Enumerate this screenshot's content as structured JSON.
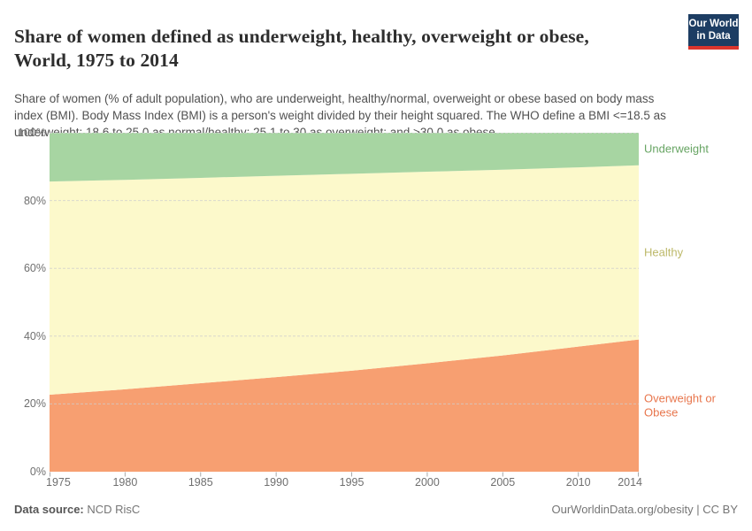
{
  "header": {
    "title_line1": "Share of women defined as underweight, healthy, overweight or obese,",
    "title_line2": "World, 1975 to 2014",
    "subtitle_line1": "Share of women (% of adult population), who are underweight, healthy/normal, overweight or obese based on body mass",
    "subtitle_line2": "index (BMI). Body Mass Index (BMI) is a person's weight divided by their height squared. The WHO define a BMI <=18.5 as",
    "subtitle_line3": "underweight; 18.6 to 25.0 as normal/healthy; 25.1 to 30 as overweight; and >30.0 as obese."
  },
  "logo": {
    "line1": "Our World",
    "line2": "in Data",
    "bg_color": "#1d3d63",
    "accent_color": "#dc352d"
  },
  "chart_data": {
    "type": "area",
    "stacked": true,
    "title": "Share of women defined as underweight, healthy, overweight or obese, World, 1975 to 2014",
    "x": [
      1975,
      1980,
      1985,
      1990,
      1995,
      2000,
      2005,
      2010,
      2014
    ],
    "xlim": [
      1975,
      2014
    ],
    "ylim": [
      0,
      100
    ],
    "xticks": [
      1975,
      1980,
      1985,
      1990,
      1995,
      2000,
      2005,
      2010,
      2014
    ],
    "yticks": [
      0,
      20,
      40,
      60,
      80,
      100
    ],
    "ytick_suffix": "%",
    "grid": "dashed-horizontal",
    "legend_position": "right-inline-labels",
    "series": [
      {
        "name": "Overweight or Obese",
        "area_color": "#f79f71",
        "label_color": "#e8764d",
        "values": [
          22.7,
          24.3,
          26.1,
          27.9,
          29.8,
          32.0,
          34.3,
          36.9,
          39.0
        ]
      },
      {
        "name": "Healthy",
        "area_color": "#fcf9cb",
        "label_color": "#bdb96a",
        "values": [
          62.9,
          61.8,
          60.6,
          59.4,
          58.1,
          56.5,
          54.8,
          52.9,
          51.4
        ]
      },
      {
        "name": "Underweight",
        "area_color": "#a7d5a2",
        "label_color": "#68a564",
        "values": [
          14.4,
          13.9,
          13.3,
          12.7,
          12.1,
          11.5,
          10.9,
          10.2,
          9.6
        ]
      }
    ]
  },
  "footer": {
    "datasource_label": "Data source:",
    "datasource_value": "NCD RisC",
    "attribution": "OurWorldinData.org/obesity | CC BY"
  }
}
